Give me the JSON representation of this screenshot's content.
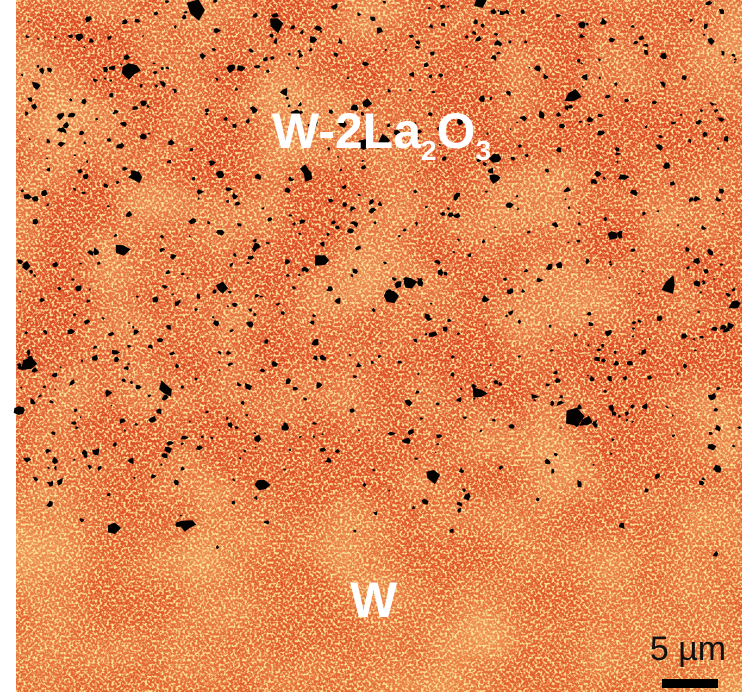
{
  "labels": {
    "top": [
      "W-2La",
      "2",
      "O",
      "3"
    ],
    "bottom": "W"
  },
  "scale_bar": "5 µm"
}
